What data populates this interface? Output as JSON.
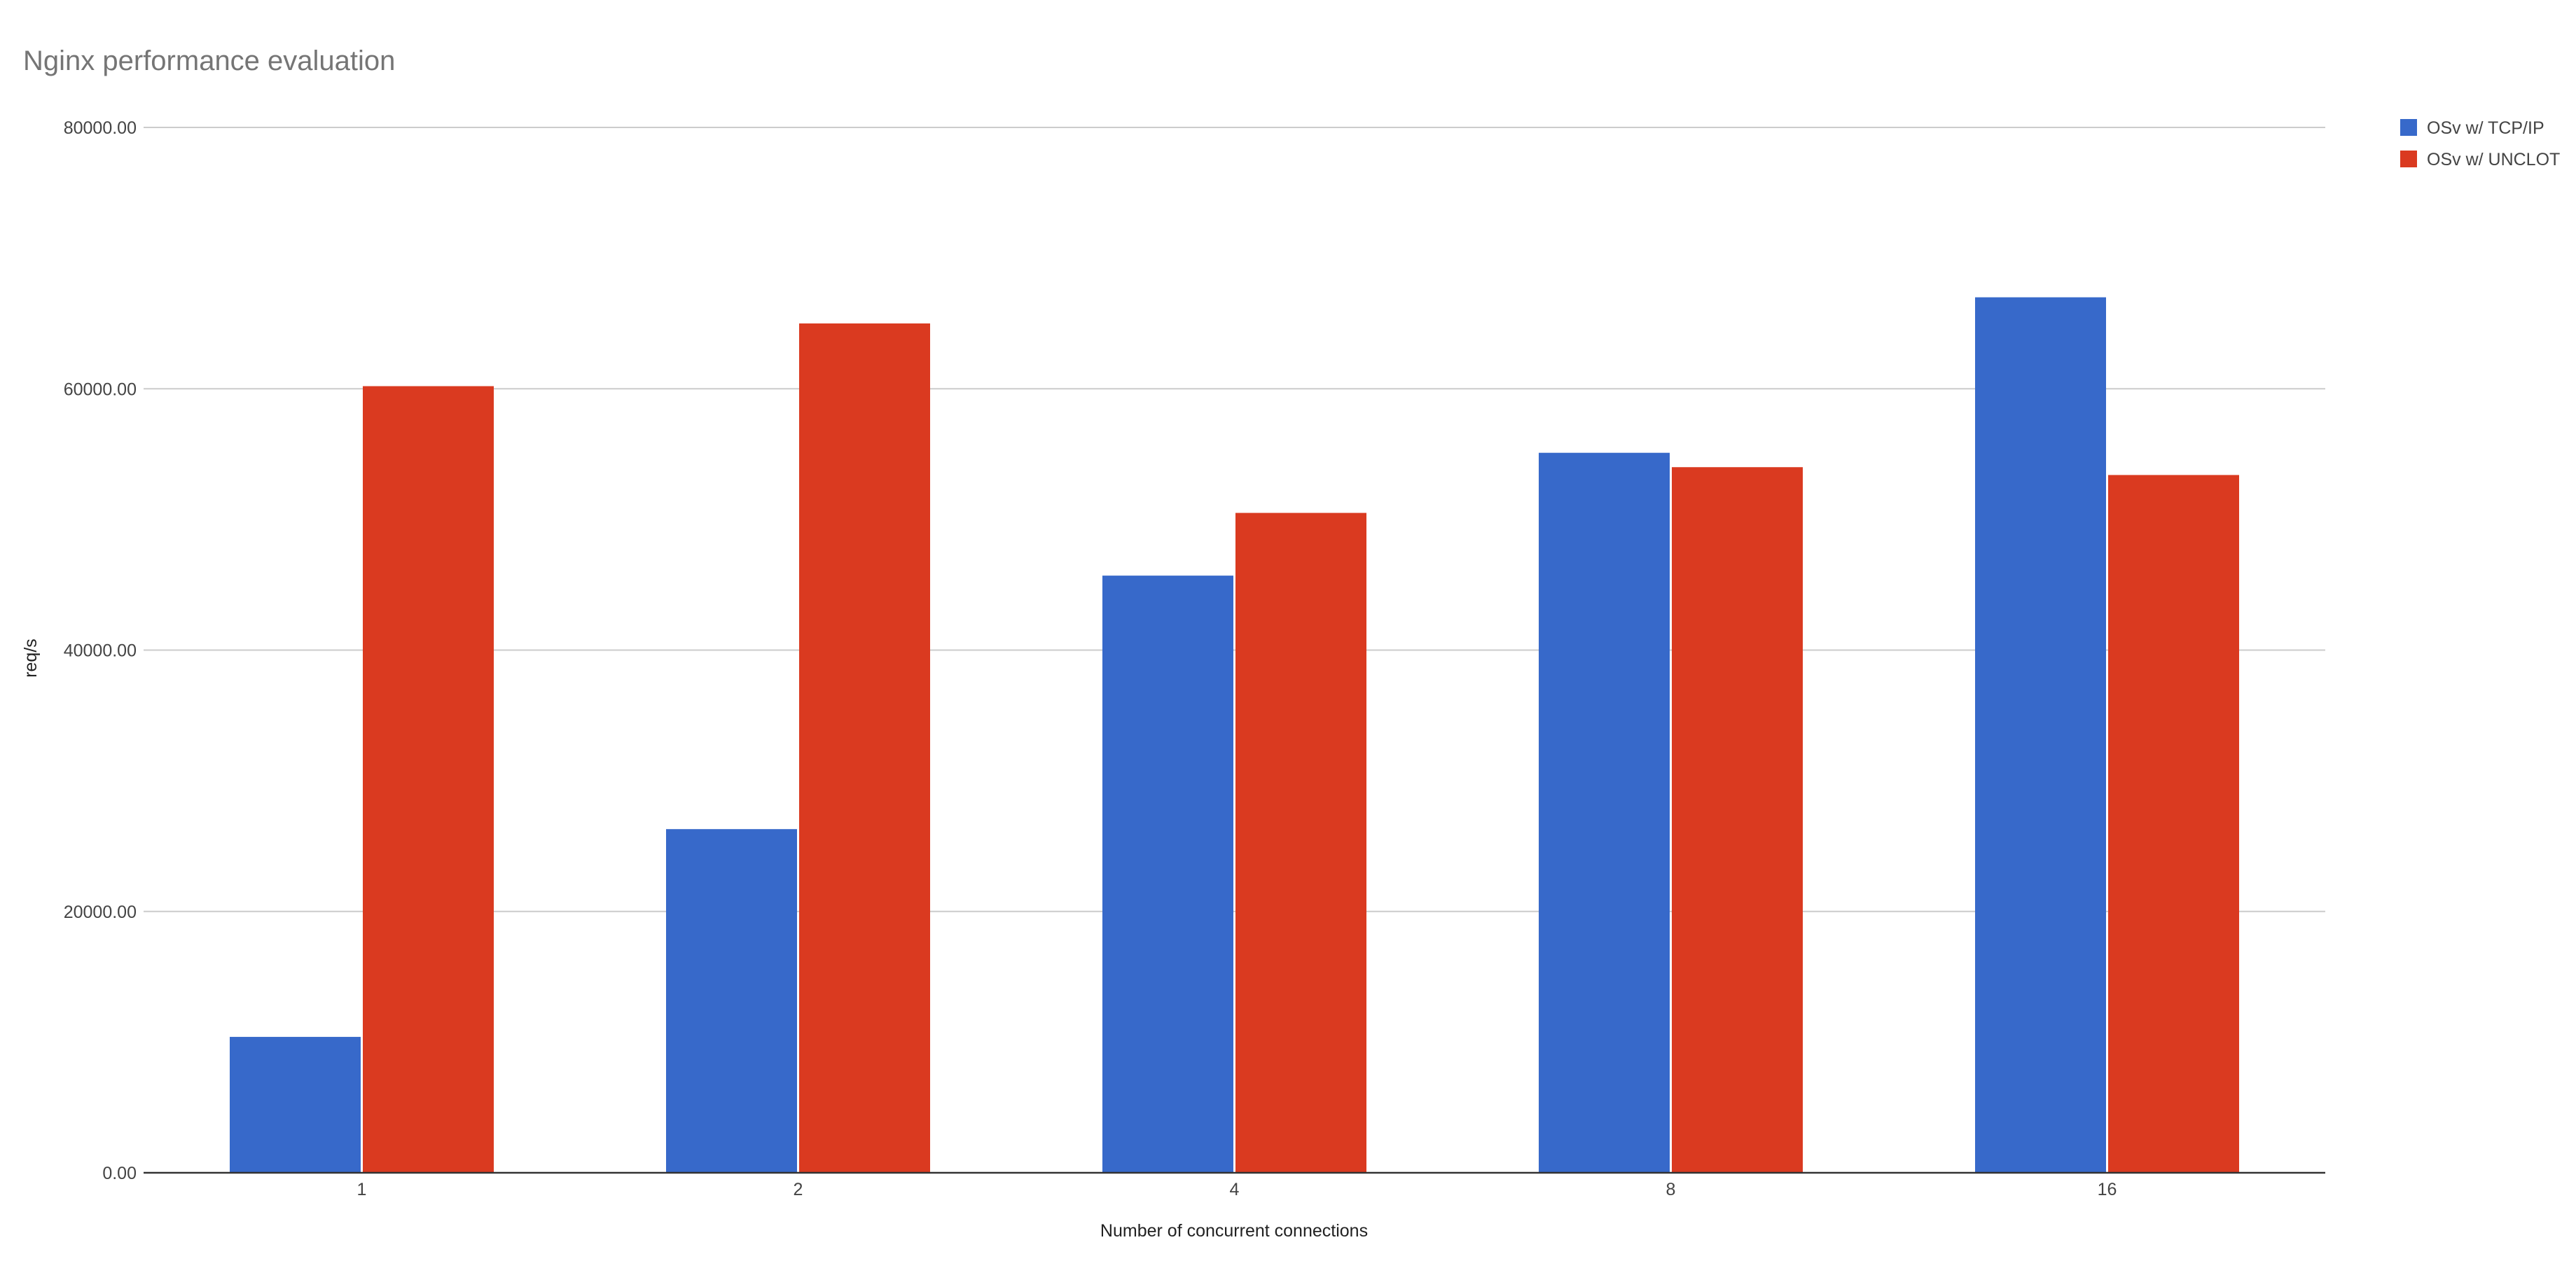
{
  "chart_data": {
    "type": "bar",
    "title": "Nginx performance evaluation",
    "xlabel": "Number of concurrent connections",
    "ylabel": "req/s",
    "categories": [
      "1",
      "2",
      "4",
      "8",
      "16"
    ],
    "series": [
      {
        "name": "OSv w/ TCP/IP",
        "color": "#3769CA",
        "values": [
          10400,
          26300,
          45700,
          55100,
          67000
        ]
      },
      {
        "name": "OSv w/ UNCLOT",
        "color": "#DA3A20",
        "values": [
          60200,
          65000,
          50500,
          54000,
          53400
        ]
      }
    ],
    "ylim": [
      0,
      80000
    ],
    "yticks": [
      0,
      20000,
      40000,
      60000,
      80000
    ],
    "ytick_labels": [
      "0.00",
      "20000.00",
      "40000.00",
      "60000.00",
      "80000.00"
    ],
    "grid": true,
    "legend_position": "top-right"
  }
}
